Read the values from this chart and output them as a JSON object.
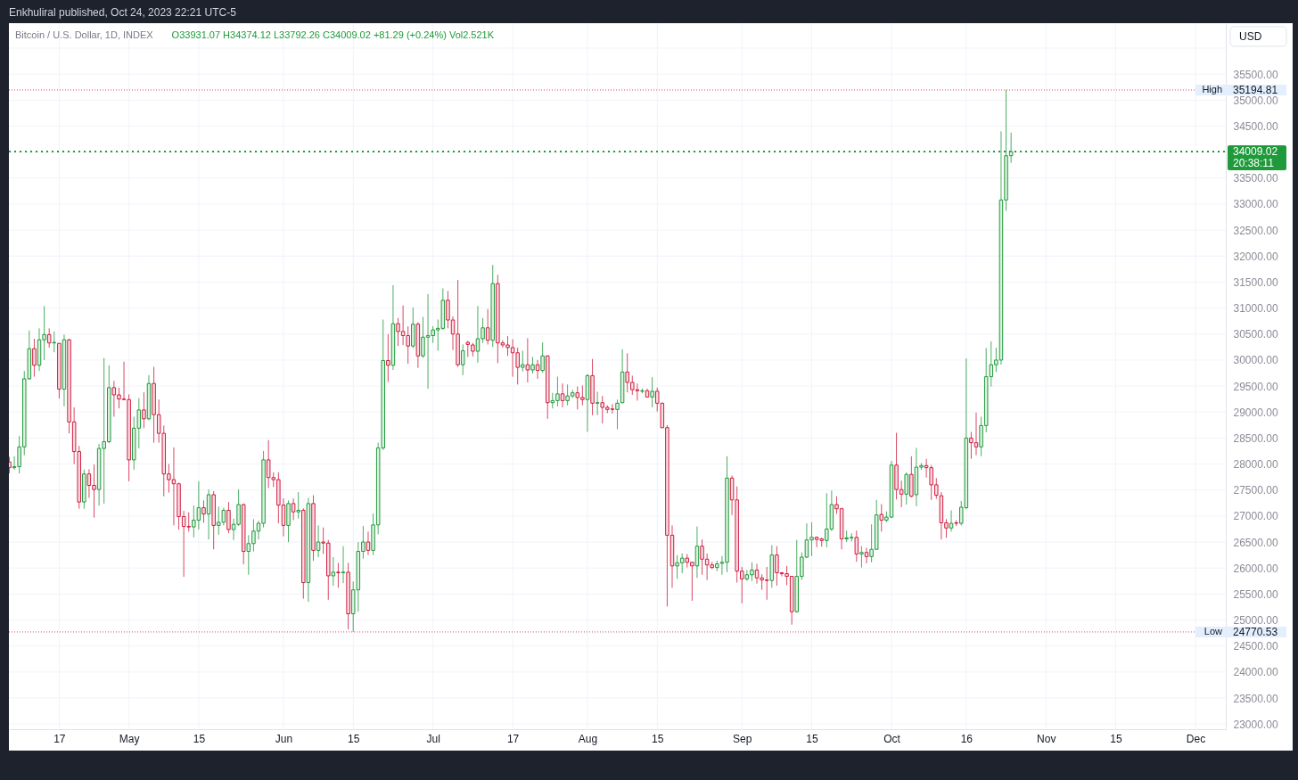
{
  "chart_data": {
    "type": "candlestick",
    "title": "Bitcoin / U.S. Dollar, 1D, INDEX",
    "subtitle": "O33931.07 H34374.12 L33792.26 C34009.02 +81.29 (+0.24%) Vol2.521K",
    "ylabel": "USD",
    "annotations": [
      "Enkhuliral published, Oct 24, 2023 22:21 UTC-5",
      "20:38:11",
      "High",
      "Low"
    ],
    "x": [
      "2023-04-07",
      "2023-04-08",
      "2023-04-09",
      "2023-04-10",
      "2023-04-11",
      "2023-04-12",
      "2023-04-13",
      "2023-04-14",
      "2023-04-15",
      "2023-04-16",
      "2023-04-17",
      "2023-04-18",
      "2023-04-19",
      "2023-04-20",
      "2023-04-21",
      "2023-04-22",
      "2023-04-23",
      "2023-04-24",
      "2023-04-25",
      "2023-04-26",
      "2023-04-27",
      "2023-04-28",
      "2023-04-29",
      "2023-04-30",
      "2023-05-01",
      "2023-05-02",
      "2023-05-03",
      "2023-05-04",
      "2023-05-05",
      "2023-05-06",
      "2023-05-07",
      "2023-05-08",
      "2023-05-09",
      "2023-05-10",
      "2023-05-11",
      "2023-05-12",
      "2023-05-13",
      "2023-05-14",
      "2023-05-15",
      "2023-05-16",
      "2023-05-17",
      "2023-05-18",
      "2023-05-19",
      "2023-05-20",
      "2023-05-21",
      "2023-05-22",
      "2023-05-23",
      "2023-05-24",
      "2023-05-25",
      "2023-05-26",
      "2023-05-27",
      "2023-05-28",
      "2023-05-29",
      "2023-05-30",
      "2023-05-31",
      "2023-06-01",
      "2023-06-02",
      "2023-06-03",
      "2023-06-04",
      "2023-06-05",
      "2023-06-06",
      "2023-06-07",
      "2023-06-08",
      "2023-06-09",
      "2023-06-10",
      "2023-06-11",
      "2023-06-12",
      "2023-06-13",
      "2023-06-14",
      "2023-06-15",
      "2023-06-16",
      "2023-06-17",
      "2023-06-18",
      "2023-06-19",
      "2023-06-20",
      "2023-06-21",
      "2023-06-22",
      "2023-06-23",
      "2023-06-24",
      "2023-06-25",
      "2023-06-26",
      "2023-06-27",
      "2023-06-28",
      "2023-06-29",
      "2023-06-30",
      "2023-07-01",
      "2023-07-02",
      "2023-07-03",
      "2023-07-04",
      "2023-07-05",
      "2023-07-06",
      "2023-07-07",
      "2023-07-08",
      "2023-07-09",
      "2023-07-10",
      "2023-07-11",
      "2023-07-12",
      "2023-07-13",
      "2023-07-14",
      "2023-07-15",
      "2023-07-16",
      "2023-07-17",
      "2023-07-18",
      "2023-07-19",
      "2023-07-20",
      "2023-07-21",
      "2023-07-22",
      "2023-07-23",
      "2023-07-24",
      "2023-07-25",
      "2023-07-26",
      "2023-07-27",
      "2023-07-28",
      "2023-07-29",
      "2023-07-30",
      "2023-07-31",
      "2023-08-01",
      "2023-08-02",
      "2023-08-03",
      "2023-08-04",
      "2023-08-05",
      "2023-08-06",
      "2023-08-07",
      "2023-08-08",
      "2023-08-09",
      "2023-08-10",
      "2023-08-11",
      "2023-08-12",
      "2023-08-13",
      "2023-08-14",
      "2023-08-15",
      "2023-08-16",
      "2023-08-17",
      "2023-08-18",
      "2023-08-19",
      "2023-08-20",
      "2023-08-21",
      "2023-08-22",
      "2023-08-23",
      "2023-08-24",
      "2023-08-25",
      "2023-08-26",
      "2023-08-27",
      "2023-08-28",
      "2023-08-29",
      "2023-08-30",
      "2023-08-31",
      "2023-09-01",
      "2023-09-02",
      "2023-09-03",
      "2023-09-04",
      "2023-09-05",
      "2023-09-06",
      "2023-09-07",
      "2023-09-08",
      "2023-09-09",
      "2023-09-10",
      "2023-09-11",
      "2023-09-12",
      "2023-09-13",
      "2023-09-14",
      "2023-09-15",
      "2023-09-16",
      "2023-09-17",
      "2023-09-18",
      "2023-09-19",
      "2023-09-20",
      "2023-09-21",
      "2023-09-22",
      "2023-09-23",
      "2023-09-24",
      "2023-09-25",
      "2023-09-26",
      "2023-09-27",
      "2023-09-28",
      "2023-09-29",
      "2023-09-30",
      "2023-10-01",
      "2023-10-02",
      "2023-10-03",
      "2023-10-04",
      "2023-10-05",
      "2023-10-06",
      "2023-10-07",
      "2023-10-08",
      "2023-10-09",
      "2023-10-10",
      "2023-10-11",
      "2023-10-12",
      "2023-10-13",
      "2023-10-14",
      "2023-10-15",
      "2023-10-16",
      "2023-10-17",
      "2023-10-18",
      "2023-10-19",
      "2023-10-20",
      "2023-10-21",
      "2023-10-22",
      "2023-10-23",
      "2023-10-24",
      "2023-10-25"
    ],
    "ohlc": [
      [
        28040,
        28140,
        27820,
        27930
      ],
      [
        27930,
        28150,
        27890,
        27950
      ],
      [
        27950,
        28540,
        27820,
        28330
      ],
      [
        28330,
        29790,
        28170,
        29640
      ],
      [
        29640,
        30570,
        29620,
        30220
      ],
      [
        30220,
        30410,
        29680,
        29900
      ],
      [
        29900,
        30610,
        29790,
        30390
      ],
      [
        30390,
        31040,
        30000,
        30490
      ],
      [
        30490,
        30610,
        30240,
        30330
      ],
      [
        30330,
        30550,
        30150,
        30340
      ],
      [
        30320,
        30330,
        29260,
        29440
      ],
      [
        29440,
        30490,
        29110,
        30390
      ],
      [
        30390,
        30410,
        28590,
        28810
      ],
      [
        28810,
        29090,
        28000,
        28240
      ],
      [
        28240,
        28350,
        27140,
        27270
      ],
      [
        27270,
        27890,
        27140,
        27810
      ],
      [
        27810,
        27900,
        27350,
        27590
      ],
      [
        27590,
        27990,
        26970,
        27510
      ],
      [
        27510,
        28390,
        27200,
        28300
      ],
      [
        28300,
        30040,
        27240,
        28430
      ],
      [
        28430,
        29900,
        28400,
        29470
      ],
      [
        29470,
        29600,
        28910,
        29330
      ],
      [
        29330,
        29470,
        29070,
        29250
      ],
      [
        29250,
        29970,
        29230,
        29240
      ],
      [
        29240,
        29340,
        27670,
        28080
      ],
      [
        28080,
        28910,
        27890,
        28690
      ],
      [
        28690,
        29270,
        28300,
        29040
      ],
      [
        29040,
        29380,
        28690,
        28870
      ],
      [
        28870,
        29710,
        28840,
        29550
      ],
      [
        29550,
        29870,
        28410,
        28950
      ],
      [
        28950,
        29240,
        28410,
        28590
      ],
      [
        28590,
        28740,
        27380,
        27810
      ],
      [
        27810,
        28000,
        27450,
        27700
      ],
      [
        27700,
        28320,
        26820,
        27620
      ],
      [
        27620,
        27640,
        26740,
        26990
      ],
      [
        26990,
        27100,
        25830,
        26800
      ],
      [
        26800,
        27070,
        26700,
        26790
      ],
      [
        26790,
        27200,
        26590,
        26920
      ],
      [
        26920,
        27670,
        26740,
        27160
      ],
      [
        27160,
        27300,
        26870,
        27040
      ],
      [
        27040,
        27510,
        26550,
        27410
      ],
      [
        27410,
        27480,
        26360,
        26820
      ],
      [
        26820,
        27180,
        26640,
        26880
      ],
      [
        26880,
        27160,
        26820,
        27110
      ],
      [
        27110,
        27270,
        26670,
        26740
      ],
      [
        26740,
        26950,
        26540,
        26840
      ],
      [
        26840,
        27510,
        26810,
        27220
      ],
      [
        27220,
        27240,
        26070,
        26320
      ],
      [
        26320,
        26630,
        25870,
        26470
      ],
      [
        26470,
        26940,
        26320,
        26710
      ],
      [
        26710,
        26910,
        26550,
        26860
      ],
      [
        26860,
        28250,
        26780,
        28080
      ],
      [
        28080,
        28460,
        27540,
        27740
      ],
      [
        27740,
        27840,
        27560,
        27700
      ],
      [
        27700,
        27840,
        26860,
        27210
      ],
      [
        27210,
        27340,
        26610,
        26820
      ],
      [
        26820,
        27300,
        26500,
        27240
      ],
      [
        27240,
        27340,
        26920,
        27080
      ],
      [
        27080,
        27460,
        26950,
        27110
      ],
      [
        27110,
        27150,
        25410,
        25720
      ],
      [
        25720,
        27350,
        25350,
        27240
      ],
      [
        27240,
        27400,
        26140,
        26340
      ],
      [
        26340,
        26820,
        26210,
        26500
      ],
      [
        26500,
        26780,
        26270,
        26480
      ],
      [
        26480,
        26540,
        25390,
        25850
      ],
      [
        25850,
        26210,
        25660,
        25920
      ],
      [
        25920,
        26100,
        25620,
        25910
      ],
      [
        25910,
        26420,
        25710,
        25920
      ],
      [
        25920,
        26100,
        24820,
        25120
      ],
      [
        25120,
        25740,
        24770.53,
        25580
      ],
      [
        25580,
        26500,
        25160,
        26320
      ],
      [
        26320,
        26810,
        26180,
        26500
      ],
      [
        26500,
        26700,
        26250,
        26340
      ],
      [
        26340,
        27050,
        26250,
        26830
      ],
      [
        26830,
        28410,
        26650,
        28310
      ],
      [
        28310,
        30780,
        28270,
        29990
      ],
      [
        29990,
        30500,
        29580,
        29900
      ],
      [
        29900,
        31440,
        29810,
        30700
      ],
      [
        30700,
        30810,
        30270,
        30550
      ],
      [
        30550,
        31050,
        30290,
        30470
      ],
      [
        30470,
        30650,
        29930,
        30270
      ],
      [
        30270,
        31010,
        30230,
        30690
      ],
      [
        30690,
        30730,
        29850,
        30080
      ],
      [
        30080,
        30830,
        30040,
        30440
      ],
      [
        30440,
        31270,
        29450,
        30470
      ],
      [
        30470,
        30650,
        30330,
        30580
      ],
      [
        30580,
        30780,
        30180,
        30610
      ],
      [
        30610,
        31380,
        30580,
        31150
      ],
      [
        31150,
        31330,
        30610,
        30770
      ],
      [
        30770,
        30840,
        30190,
        30500
      ],
      [
        30500,
        31540,
        29870,
        29910
      ],
      [
        29910,
        30300,
        29710,
        30180
      ],
      [
        30340,
        30370,
        30060,
        30300
      ],
      [
        30290,
        30330,
        30070,
        30170
      ],
      [
        30170,
        31040,
        29950,
        30410
      ],
      [
        30410,
        30810,
        30330,
        30620
      ],
      [
        30620,
        30980,
        30300,
        30380
      ],
      [
        30380,
        31830,
        30250,
        31470
      ],
      [
        31470,
        31640,
        29940,
        30330
      ],
      [
        30330,
        30380,
        30240,
        30290
      ],
      [
        30290,
        30460,
        30080,
        30240
      ],
      [
        30240,
        30400,
        29680,
        30140
      ],
      [
        30140,
        30240,
        29530,
        29860
      ],
      [
        29860,
        30180,
        29780,
        29910
      ],
      [
        29910,
        30420,
        29570,
        29810
      ],
      [
        29810,
        30060,
        29740,
        29910
      ],
      [
        29910,
        30000,
        29640,
        29800
      ],
      [
        29800,
        30340,
        29760,
        30080
      ],
      [
        30080,
        30090,
        28870,
        29180
      ],
      [
        29180,
        29370,
        29070,
        29220
      ],
      [
        29220,
        29680,
        29110,
        29350
      ],
      [
        29350,
        29550,
        29090,
        29220
      ],
      [
        29220,
        29530,
        29130,
        29310
      ],
      [
        29310,
        29430,
        29270,
        29370
      ],
      [
        29370,
        29490,
        29050,
        29280
      ],
      [
        29280,
        29510,
        29130,
        29240
      ],
      [
        29240,
        29730,
        28620,
        29700
      ],
      [
        29700,
        30020,
        28940,
        29170
      ],
      [
        29170,
        29390,
        28940,
        29180
      ],
      [
        29180,
        29310,
        28780,
        29090
      ],
      [
        29090,
        29130,
        28980,
        29050
      ],
      [
        29060,
        29150,
        28970,
        29050
      ],
      [
        29050,
        29240,
        28670,
        29170
      ],
      [
        29180,
        30210,
        29170,
        29770
      ],
      [
        29770,
        30130,
        29380,
        29570
      ],
      [
        29570,
        29700,
        29330,
        29430
      ],
      [
        29430,
        29550,
        29220,
        29410
      ],
      [
        29400,
        29450,
        29360,
        29410
      ],
      [
        29410,
        29450,
        29280,
        29290
      ],
      [
        29290,
        29670,
        29090,
        29400
      ],
      [
        29400,
        29470,
        29010,
        29170
      ],
      [
        29170,
        29180,
        28690,
        28700
      ],
      [
        28700,
        28750,
        25260,
        26630
      ],
      [
        26630,
        26820,
        25620,
        26040
      ],
      [
        26040,
        26250,
        25790,
        26100
      ],
      [
        26100,
        26280,
        25900,
        26190
      ],
      [
        26190,
        26270,
        26010,
        26110
      ],
      [
        26110,
        26120,
        25370,
        26040
      ],
      [
        26040,
        26800,
        25810,
        26420
      ],
      [
        26420,
        26550,
        25870,
        26170
      ],
      [
        26170,
        26280,
        25770,
        26060
      ],
      [
        26060,
        26120,
        25980,
        26010
      ],
      [
        26010,
        26140,
        25940,
        26080
      ],
      [
        26090,
        26230,
        25870,
        26110
      ],
      [
        26110,
        28150,
        25920,
        27730
      ],
      [
        27730,
        27780,
        27020,
        27310
      ],
      [
        27310,
        27570,
        25720,
        25940
      ],
      [
        25940,
        26020,
        25320,
        25790
      ],
      [
        25790,
        25960,
        25750,
        25870
      ],
      [
        25870,
        26110,
        25750,
        25960
      ],
      [
        25960,
        26080,
        25700,
        25810
      ],
      [
        25810,
        25880,
        25580,
        25770
      ],
      [
        25770,
        26020,
        25390,
        25760
      ],
      [
        25760,
        26440,
        25620,
        26250
      ],
      [
        26250,
        26420,
        25660,
        25910
      ],
      [
        25910,
        25920,
        25840,
        25890
      ],
      [
        25890,
        26040,
        25670,
        25840
      ],
      [
        25840,
        25850,
        24910,
        25160
      ],
      [
        25160,
        26540,
        25140,
        25840
      ],
      [
        25840,
        26300,
        25770,
        26210
      ],
      [
        26210,
        26860,
        26190,
        26540
      ],
      [
        26540,
        26880,
        26230,
        26590
      ],
      [
        26590,
        26610,
        26400,
        26550
      ],
      [
        26560,
        26580,
        26410,
        26530
      ],
      [
        26530,
        27440,
        26400,
        26750
      ],
      [
        26750,
        27490,
        26710,
        27220
      ],
      [
        27220,
        27380,
        27040,
        27140
      ],
      [
        27140,
        27160,
        26360,
        26560
      ],
      [
        26560,
        26720,
        26500,
        26580
      ],
      [
        26580,
        26670,
        26510,
        26590
      ],
      [
        26590,
        26720,
        26120,
        26270
      ],
      [
        26270,
        26420,
        26010,
        26300
      ],
      [
        26300,
        26390,
        26090,
        26220
      ],
      [
        26220,
        26840,
        26110,
        26360
      ],
      [
        26360,
        27310,
        26350,
        27020
      ],
      [
        27030,
        27230,
        26700,
        26920
      ],
      [
        26920,
        27090,
        26880,
        26980
      ],
      [
        26980,
        28060,
        26960,
        27980
      ],
      [
        27980,
        28600,
        27320,
        27510
      ],
      [
        27510,
        27680,
        27170,
        27420
      ],
      [
        27420,
        27840,
        27220,
        27800
      ],
      [
        27800,
        28150,
        27360,
        27380
      ],
      [
        27410,
        28310,
        27190,
        27940
      ],
      [
        27940,
        28020,
        27890,
        27970
      ],
      [
        27970,
        28100,
        27740,
        27930
      ],
      [
        27930,
        27980,
        27310,
        27600
      ],
      [
        27600,
        27730,
        27330,
        27400
      ],
      [
        27390,
        27460,
        26550,
        26870
      ],
      [
        26870,
        26940,
        26580,
        26770
      ],
      [
        26770,
        27110,
        26700,
        26860
      ],
      [
        26870,
        26920,
        26810,
        26860
      ],
      [
        26860,
        27290,
        26820,
        27170
      ],
      [
        27160,
        30030,
        27130,
        28500
      ],
      [
        28500,
        28620,
        28100,
        28410
      ],
      [
        28410,
        28990,
        28170,
        28330
      ],
      [
        28330,
        28910,
        28150,
        28740
      ],
      [
        28740,
        30230,
        28610,
        29680
      ],
      [
        29680,
        30360,
        29490,
        29910
      ],
      [
        29910,
        30240,
        29770,
        30000
      ],
      [
        30000,
        34400,
        29910,
        33080
      ],
      [
        33080,
        35194.81,
        32870,
        33930
      ],
      [
        33931.07,
        34374.12,
        33792.26,
        34009.02
      ]
    ],
    "colors": [
      "#d01c3f",
      "#1f9a3a",
      "#1f9a3a",
      "#1f9a3a",
      "#1f9a3a",
      "#d01c3f",
      "#1f9a3a",
      "#1f9a3a",
      "#d01c3f",
      "#1f9a3a",
      "#d01c3f",
      "#1f9a3a",
      "#d01c3f",
      "#d01c3f",
      "#d01c3f",
      "#1f9a3a",
      "#d01c3f",
      "#d01c3f",
      "#1f9a3a",
      "#1f9a3a",
      "#1f9a3a",
      "#d01c3f",
      "#d01c3f",
      "#d01c3f",
      "#d01c3f",
      "#1f9a3a",
      "#1f9a3a",
      "#d01c3f",
      "#1f9a3a",
      "#d01c3f",
      "#d01c3f",
      "#d01c3f",
      "#d01c3f",
      "#d01c3f",
      "#d01c3f",
      "#d01c3f",
      "#d01c3f",
      "#1f9a3a",
      "#1f9a3a",
      "#d01c3f",
      "#1f9a3a",
      "#d01c3f",
      "#1f9a3a",
      "#1f9a3a",
      "#d01c3f",
      "#1f9a3a",
      "#1f9a3a",
      "#d01c3f",
      "#1f9a3a",
      "#1f9a3a",
      "#1f9a3a",
      "#1f9a3a",
      "#d01c3f",
      "#d01c3f",
      "#d01c3f",
      "#d01c3f",
      "#1f9a3a",
      "#d01c3f",
      "#1f9a3a",
      "#d01c3f",
      "#1f9a3a",
      "#d01c3f",
      "#1f9a3a",
      "#d01c3f",
      "#d01c3f",
      "#1f9a3a",
      "#d01c3f",
      "#1f9a3a",
      "#d01c3f",
      "#1f9a3a",
      "#1f9a3a",
      "#1f9a3a",
      "#d01c3f",
      "#1f9a3a",
      "#1f9a3a",
      "#1f9a3a",
      "#d01c3f",
      "#1f9a3a",
      "#d01c3f",
      "#d01c3f",
      "#d01c3f",
      "#1f9a3a",
      "#d01c3f",
      "#1f9a3a",
      "#1f9a3a",
      "#1f9a3a",
      "#1f9a3a",
      "#1f9a3a",
      "#d01c3f",
      "#d01c3f",
      "#d01c3f",
      "#1f9a3a",
      "#d01c3f",
      "#d01c3f",
      "#1f9a3a",
      "#1f9a3a",
      "#d01c3f",
      "#1f9a3a",
      "#d01c3f",
      "#d01c3f",
      "#d01c3f",
      "#d01c3f",
      "#d01c3f",
      "#1f9a3a",
      "#d01c3f",
      "#1f9a3a",
      "#d01c3f",
      "#1f9a3a",
      "#d01c3f",
      "#1f9a3a",
      "#1f9a3a",
      "#d01c3f",
      "#1f9a3a",
      "#1f9a3a",
      "#d01c3f",
      "#d01c3f",
      "#1f9a3a",
      "#d01c3f",
      "#1f9a3a",
      "#d01c3f",
      "#d01c3f",
      "#d01c3f",
      "#1f9a3a",
      "#1f9a3a",
      "#d01c3f",
      "#d01c3f",
      "#d01c3f",
      "#1f9a3a",
      "#d01c3f",
      "#1f9a3a",
      "#d01c3f",
      "#d01c3f",
      "#d01c3f",
      "#d01c3f",
      "#1f9a3a",
      "#1f9a3a",
      "#d01c3f",
      "#d01c3f",
      "#1f9a3a",
      "#d01c3f",
      "#d01c3f",
      "#d01c3f",
      "#1f9a3a",
      "#1f9a3a",
      "#1f9a3a",
      "#d01c3f",
      "#d01c3f",
      "#d01c3f",
      "#1f9a3a",
      "#1f9a3a",
      "#d01c3f",
      "#d01c3f",
      "#d01c3f",
      "#1f9a3a",
      "#d01c3f",
      "#d01c3f",
      "#d01c3f",
      "#d01c3f",
      "#1f9a3a",
      "#1f9a3a",
      "#1f9a3a",
      "#1f9a3a",
      "#d01c3f",
      "#d01c3f",
      "#1f9a3a",
      "#1f9a3a",
      "#d01c3f",
      "#d01c3f",
      "#1f9a3a",
      "#1f9a3a",
      "#d01c3f",
      "#1f9a3a",
      "#d01c3f",
      "#1f9a3a",
      "#1f9a3a",
      "#d01c3f",
      "#1f9a3a",
      "#1f9a3a",
      "#d01c3f",
      "#d01c3f",
      "#1f9a3a",
      "#d01c3f",
      "#1f9a3a",
      "#1f9a3a",
      "#d01c3f",
      "#d01c3f",
      "#d01c3f",
      "#d01c3f",
      "#d01c3f",
      "#1f9a3a",
      "#d01c3f",
      "#1f9a3a",
      "#1f9a3a",
      "#d01c3f",
      "#d01c3f",
      "#1f9a3a",
      "#1f9a3a",
      "#1f9a3a",
      "#1f9a3a",
      "#1f9a3a",
      "#1f9a3a",
      "#1f9a3a"
    ],
    "xlim": [
      "2023-04-06T22:00",
      "2023-12-07T02:00"
    ],
    "ylim": [
      22900,
      36480
    ],
    "xticks": [
      {
        "value": "2023-04-17",
        "label": "17"
      },
      {
        "value": "2023-05-01",
        "label": "May"
      },
      {
        "value": "2023-05-15",
        "label": "15"
      },
      {
        "value": "2023-06-01",
        "label": "Jun"
      },
      {
        "value": "2023-06-15",
        "label": "15"
      },
      {
        "value": "2023-07-01",
        "label": "Jul"
      },
      {
        "value": "2023-07-17",
        "label": "17"
      },
      {
        "value": "2023-08-01",
        "label": "Aug"
      },
      {
        "value": "2023-08-15",
        "label": "15"
      },
      {
        "value": "2023-09-01",
        "label": "Sep"
      },
      {
        "value": "2023-09-15",
        "label": "15"
      },
      {
        "value": "2023-10-01",
        "label": "Oct"
      },
      {
        "value": "2023-10-16",
        "label": "16"
      },
      {
        "value": "2023-11-01",
        "label": "Nov"
      },
      {
        "value": "2023-11-15",
        "label": "15"
      },
      {
        "value": "2023-12-01",
        "label": "Dec"
      }
    ],
    "yticks": [
      {
        "value": 23000,
        "label": "23000.00"
      },
      {
        "value": 23500,
        "label": "23500.00"
      },
      {
        "value": 24000,
        "label": "24000.00"
      },
      {
        "value": 24500,
        "label": "24500.00"
      },
      {
        "value": 25000,
        "label": "25000.00"
      },
      {
        "value": 25500,
        "label": "25500.00"
      },
      {
        "value": 26000,
        "label": "26000.00"
      },
      {
        "value": 26500,
        "label": "26500.00"
      },
      {
        "value": 27000,
        "label": "27000.00"
      },
      {
        "value": 27500,
        "label": "27500.00"
      },
      {
        "value": 28000,
        "label": "28000.00"
      },
      {
        "value": 28500,
        "label": "28500.00"
      },
      {
        "value": 29000,
        "label": "29000.00"
      },
      {
        "value": 29500,
        "label": "29500.00"
      },
      {
        "value": 30000,
        "label": "30000.00"
      },
      {
        "value": 30500,
        "label": "30500.00"
      },
      {
        "value": 31000,
        "label": "31000.00"
      },
      {
        "value": 31500,
        "label": "31500.00"
      },
      {
        "value": 32000,
        "label": "32000.00"
      },
      {
        "value": 32500,
        "label": "32500.00"
      },
      {
        "value": 33000,
        "label": "33000.00"
      },
      {
        "value": 33500,
        "label": "33500.00"
      },
      {
        "value": 34000,
        "label": null
      },
      {
        "value": 34500,
        "label": "34500.00"
      },
      {
        "value": 35000,
        "label": "35000.00"
      },
      {
        "value": 35500,
        "label": "35500.00"
      },
      {
        "value": 36000,
        "label": null
      }
    ],
    "ref_lines": [
      {
        "axis": "y",
        "value": 34009.02,
        "label": "34009.02",
        "color": "#1f9a3a",
        "line_style": "dotted"
      },
      {
        "axis": "y",
        "value": 35194.81,
        "label": "35194.81",
        "color": "#e0436a",
        "line_style": "dotted"
      },
      {
        "axis": "y",
        "value": 24770.53,
        "label": "24770.53",
        "color": "#e0436a",
        "line_style": "dotted"
      }
    ],
    "grid": true
  }
}
